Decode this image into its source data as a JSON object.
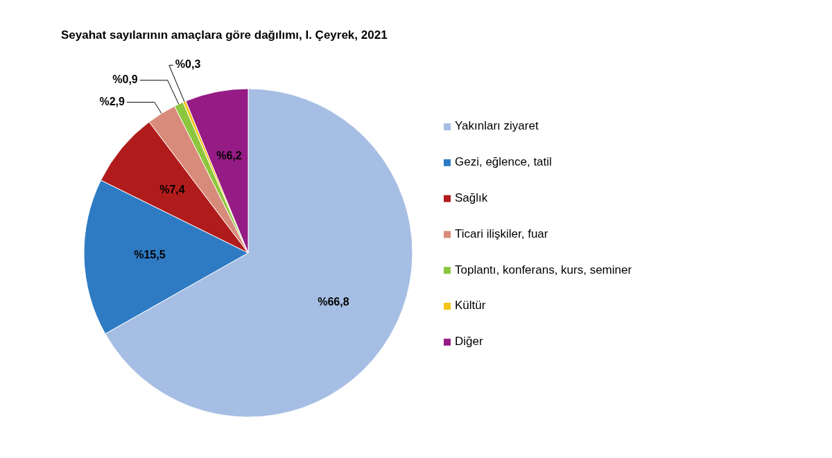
{
  "chart_data": {
    "type": "pie",
    "title": "Seyahat sayılarının amaçlara göre dağılımı, I. Çeyrek, 2021",
    "categories": [
      "Yakınları ziyaret",
      "Gezi, eğlence, tatil",
      "Sağlık",
      "Ticari ilişkiler, fuar",
      "Toplantı, konferans, kurs, seminer",
      "Kültür",
      "Diğer"
    ],
    "values": [
      66.8,
      15.5,
      7.4,
      2.9,
      0.9,
      0.3,
      6.2
    ],
    "value_labels": [
      "%66,8",
      "%15,5",
      "%7,4",
      "%2,9",
      "%0,9",
      "%0,3",
      "%6,2"
    ],
    "colors": [
      "#a6bee3",
      "#2e7bc4",
      "#b01c1c",
      "#d98b7b",
      "#8cc63e",
      "#f5c518",
      "#951c84"
    ],
    "legend": "right"
  }
}
